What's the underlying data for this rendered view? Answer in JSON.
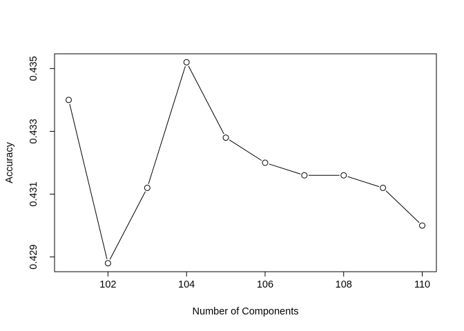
{
  "chart_data": {
    "type": "line",
    "title": "",
    "xlabel": "Number of Components",
    "ylabel": "Accuracy",
    "x": [
      101,
      102,
      103,
      104,
      105,
      106,
      107,
      108,
      109,
      110
    ],
    "series": [
      {
        "values": [
          0.434,
          0.4288,
          0.4312,
          0.4352,
          0.4328,
          0.432,
          0.4316,
          0.4316,
          0.4312,
          0.43
        ],
        "marker": "open-circle",
        "line_style": "solid",
        "color": "#000000"
      }
    ],
    "xticks": [
      102,
      104,
      106,
      108,
      110
    ],
    "yticks": [
      0.429,
      0.431,
      0.433,
      0.435
    ],
    "xtick_labels": [
      "102",
      "104",
      "106",
      "108",
      "110"
    ],
    "ytick_labels": [
      "0.429",
      "0.431",
      "0.433",
      "0.435"
    ],
    "xlim": [
      100.64,
      110.36
    ],
    "ylim": [
      0.42853,
      0.43547
    ],
    "grid": false,
    "legend": "none"
  }
}
